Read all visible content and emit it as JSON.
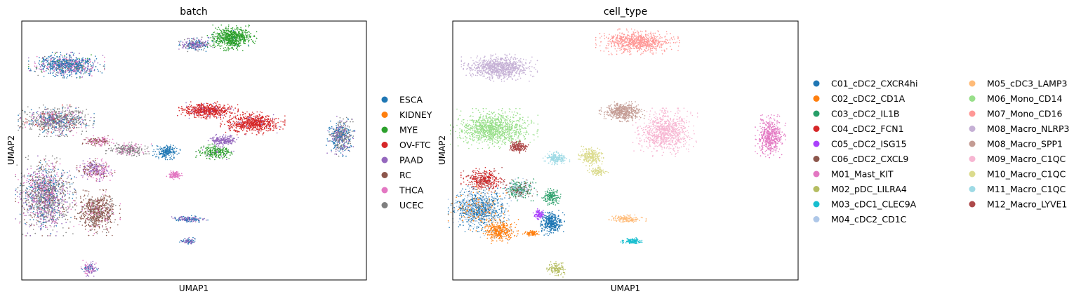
{
  "chart_data": [
    {
      "type": "scatter",
      "title": "batch",
      "xlabel": "UMAP1",
      "ylabel": "UMAP2",
      "xlim": [
        -10,
        10
      ],
      "ylim": [
        -10,
        10
      ],
      "grid": false,
      "legend_position": "right",
      "series": [
        {
          "name": "ESCA",
          "color": "#1f77b4"
        },
        {
          "name": "KIDNEY",
          "color": "#ff7f0e"
        },
        {
          "name": "MYE",
          "color": "#2ca02c"
        },
        {
          "name": "OV-FTC",
          "color": "#d62728"
        },
        {
          "name": "PAAD",
          "color": "#9467bd"
        },
        {
          "name": "RC",
          "color": "#8c564b"
        },
        {
          "name": "THCA",
          "color": "#e377c2"
        },
        {
          "name": "UCEC",
          "color": "#7f7f7f"
        }
      ],
      "clusters": [
        {
          "x": -7.4,
          "y": 6.6,
          "rx": 2.0,
          "ry": 0.9,
          "n": 900,
          "mix": [
            [
              "ESCA",
              0.55
            ],
            [
              "PAAD",
              0.15
            ],
            [
              "THCA",
              0.15
            ],
            [
              "UCEC",
              0.1
            ],
            [
              "MYE",
              0.05
            ]
          ]
        },
        {
          "x": 0.1,
          "y": 8.2,
          "rx": 1.0,
          "ry": 0.5,
          "n": 250,
          "mix": [
            [
              "PAAD",
              0.5
            ],
            [
              "ESCA",
              0.3
            ],
            [
              "UCEC",
              0.2
            ]
          ]
        },
        {
          "x": 2.2,
          "y": 8.7,
          "rx": 1.3,
          "ry": 0.9,
          "n": 700,
          "mix": [
            [
              "MYE",
              0.95
            ],
            [
              "ESCA",
              0.05
            ]
          ]
        },
        {
          "x": -8.0,
          "y": 2.3,
          "rx": 2.0,
          "ry": 1.1,
          "n": 900,
          "mix": [
            [
              "UCEC",
              0.6
            ],
            [
              "ESCA",
              0.15
            ],
            [
              "PAAD",
              0.1
            ],
            [
              "THCA",
              0.1
            ],
            [
              "OV-FTC",
              0.05
            ]
          ]
        },
        {
          "x": -8.6,
          "y": -3.5,
          "rx": 1.6,
          "ry": 2.8,
          "n": 1500,
          "mix": [
            [
              "UCEC",
              0.4
            ],
            [
              "PAAD",
              0.2
            ],
            [
              "THCA",
              0.15
            ],
            [
              "ESCA",
              0.15
            ],
            [
              "RC",
              0.1
            ]
          ]
        },
        {
          "x": -5.6,
          "y": -4.8,
          "rx": 1.2,
          "ry": 1.6,
          "n": 700,
          "mix": [
            [
              "RC",
              0.75
            ],
            [
              "UCEC",
              0.15
            ],
            [
              "THCA",
              0.1
            ]
          ]
        },
        {
          "x": -5.7,
          "y": -1.5,
          "rx": 1.0,
          "ry": 0.8,
          "n": 300,
          "mix": [
            [
              "PAAD",
              0.4
            ],
            [
              "THCA",
              0.3
            ],
            [
              "RC",
              0.3
            ]
          ]
        },
        {
          "x": -5.6,
          "y": 0.7,
          "rx": 0.9,
          "ry": 0.4,
          "n": 150,
          "mix": [
            [
              "RC",
              0.5
            ],
            [
              "THCA",
              0.5
            ]
          ]
        },
        {
          "x": -3.8,
          "y": 0.1,
          "rx": 1.2,
          "ry": 0.5,
          "n": 250,
          "mix": [
            [
              "UCEC",
              0.7
            ],
            [
              "THCA",
              0.3
            ]
          ]
        },
        {
          "x": 0.8,
          "y": 3.1,
          "rx": 1.6,
          "ry": 0.6,
          "n": 600,
          "mix": [
            [
              "OV-FTC",
              0.9
            ],
            [
              "PAAD",
              0.1
            ]
          ]
        },
        {
          "x": 3.4,
          "y": 2.1,
          "rx": 1.7,
          "ry": 0.8,
          "n": 700,
          "mix": [
            [
              "OV-FTC",
              0.95
            ],
            [
              "PAAD",
              0.05
            ]
          ]
        },
        {
          "x": 1.7,
          "y": 0.8,
          "rx": 0.8,
          "ry": 0.4,
          "n": 200,
          "mix": [
            [
              "PAAD",
              1.0
            ]
          ]
        },
        {
          "x": 1.2,
          "y": -0.1,
          "rx": 1.0,
          "ry": 0.55,
          "n": 250,
          "mix": [
            [
              "MYE",
              0.9
            ],
            [
              "PAAD",
              0.1
            ]
          ]
        },
        {
          "x": -1.6,
          "y": -0.1,
          "rx": 0.75,
          "ry": 0.55,
          "n": 200,
          "mix": [
            [
              "ESCA",
              1.0
            ]
          ]
        },
        {
          "x": -1.1,
          "y": -1.9,
          "rx": 0.45,
          "ry": 0.3,
          "n": 120,
          "mix": [
            [
              "THCA",
              1.0
            ]
          ]
        },
        {
          "x": -0.3,
          "y": -5.3,
          "rx": 1.0,
          "ry": 0.25,
          "n": 150,
          "mix": [
            [
              "ESCA",
              0.5
            ],
            [
              "PAAD",
              0.5
            ]
          ]
        },
        {
          "x": -0.3,
          "y": -7.0,
          "rx": 0.5,
          "ry": 0.25,
          "n": 80,
          "mix": [
            [
              "PAAD",
              0.6
            ],
            [
              "ESCA",
              0.4
            ]
          ]
        },
        {
          "x": -6.1,
          "y": -9.1,
          "rx": 0.5,
          "ry": 0.55,
          "n": 120,
          "mix": [
            [
              "PAAD",
              0.5
            ],
            [
              "THCA",
              0.3
            ],
            [
              "ESCA",
              0.2
            ]
          ]
        },
        {
          "x": 8.5,
          "y": 1.1,
          "rx": 0.75,
          "ry": 1.4,
          "n": 500,
          "mix": [
            [
              "UCEC",
              0.4
            ],
            [
              "ESCA",
              0.35
            ],
            [
              "PAAD",
              0.25
            ]
          ]
        }
      ]
    },
    {
      "type": "scatter",
      "title": "cell_type",
      "xlabel": "UMAP1",
      "ylabel": "UMAP2",
      "xlim": [
        -10,
        10
      ],
      "ylim": [
        -10,
        10
      ],
      "grid": false,
      "legend_position": "right",
      "series": [
        {
          "name": "C01_cDC2_CXCR4hi",
          "color": "#1f77b4"
        },
        {
          "name": "C02_cDC2_CD1A",
          "color": "#ff7f0e"
        },
        {
          "name": "C03_cDC2_IL1B",
          "color": "#279e68"
        },
        {
          "name": "C04_cDC2_FCN1",
          "color": "#d62728"
        },
        {
          "name": "C05_cDC2_ISG15",
          "color": "#aa40fc"
        },
        {
          "name": "C06_cDC2_CXCL9",
          "color": "#8c564b"
        },
        {
          "name": "M01_Mast_KIT",
          "color": "#e377c2"
        },
        {
          "name": "M02_pDC_LILRA4",
          "color": "#b5bd61"
        },
        {
          "name": "M03_cDC1_CLEC9A",
          "color": "#17becf"
        },
        {
          "name": "M04_cDC2_CD1C",
          "color": "#aec7e8"
        },
        {
          "name": "M05_cDC3_LAMP3",
          "color": "#ffbb78"
        },
        {
          "name": "M06_Mono_CD14",
          "color": "#98df8a"
        },
        {
          "name": "M07_Mono_CD16",
          "color": "#ff9896"
        },
        {
          "name": "M08_Macro_NLRP3",
          "color": "#c5b0d5"
        },
        {
          "name": "M08_Macro_SPP1",
          "color": "#c49c94"
        },
        {
          "name": "M09_Macro_C1QC",
          "color": "#f7b6d2"
        },
        {
          "name": "M10_Macro_C1QC",
          "color": "#dbdb8d"
        },
        {
          "name": "M11_Macro_C1QC",
          "color": "#9edae5"
        },
        {
          "name": "M12_Macro_LYVE1",
          "color": "#ad494a"
        }
      ],
      "clusters": [
        {
          "x": 0.7,
          "y": 8.4,
          "rx": 2.2,
          "ry": 0.9,
          "n": 800,
          "mix": [
            [
              "M07_Mono_CD16",
              1.0
            ]
          ]
        },
        {
          "x": -7.3,
          "y": 6.4,
          "rx": 2.0,
          "ry": 0.95,
          "n": 900,
          "mix": [
            [
              "M08_Macro_NLRP3",
              1.0
            ]
          ]
        },
        {
          "x": -7.6,
          "y": 1.7,
          "rx": 2.3,
          "ry": 1.4,
          "n": 1100,
          "mix": [
            [
              "M06_Mono_CD14",
              1.0
            ]
          ]
        },
        {
          "x": -0.2,
          "y": 3.0,
          "rx": 1.2,
          "ry": 0.7,
          "n": 500,
          "mix": [
            [
              "M08_Macro_SPP1",
              1.0
            ]
          ]
        },
        {
          "x": 2.3,
          "y": 1.4,
          "rx": 1.7,
          "ry": 1.7,
          "n": 900,
          "mix": [
            [
              "M09_Macro_C1QC",
              1.0
            ]
          ]
        },
        {
          "x": -2.0,
          "y": -0.4,
          "rx": 0.75,
          "ry": 0.7,
          "n": 250,
          "mix": [
            [
              "M10_Macro_C1QC",
              1.0
            ]
          ]
        },
        {
          "x": -1.6,
          "y": -1.6,
          "rx": 0.55,
          "ry": 0.35,
          "n": 100,
          "mix": [
            [
              "M10_Macro_C1QC",
              1.0
            ]
          ]
        },
        {
          "x": -4.0,
          "y": -0.6,
          "rx": 0.7,
          "ry": 0.5,
          "n": 200,
          "mix": [
            [
              "M11_Macro_C1QC",
              1.0
            ]
          ]
        },
        {
          "x": -6.2,
          "y": 0.3,
          "rx": 0.6,
          "ry": 0.45,
          "n": 200,
          "mix": [
            [
              "M12_Macro_LYVE1",
              1.0
            ]
          ]
        },
        {
          "x": -8.2,
          "y": -2.3,
          "rx": 1.2,
          "ry": 0.9,
          "n": 400,
          "mix": [
            [
              "C04_cDC2_FCN1",
              0.6
            ],
            [
              "M12_Macro_LYVE1",
              0.4
            ]
          ]
        },
        {
          "x": -8.5,
          "y": -4.5,
          "rx": 1.6,
          "ry": 1.6,
          "n": 1100,
          "mix": [
            [
              "C01_cDC2_CXCR4hi",
              0.55
            ],
            [
              "M04_cDC2_CD1C",
              0.3
            ],
            [
              "C02_cDC2_CD1A",
              0.15
            ]
          ]
        },
        {
          "x": -7.3,
          "y": -6.2,
          "rx": 1.0,
          "ry": 0.9,
          "n": 400,
          "mix": [
            [
              "C02_cDC2_CD1A",
              0.9
            ],
            [
              "M04_cDC2_CD1C",
              0.1
            ]
          ]
        },
        {
          "x": -6.1,
          "y": -3.0,
          "rx": 0.9,
          "ry": 0.8,
          "n": 350,
          "mix": [
            [
              "C03_cDC2_IL1B",
              0.45
            ],
            [
              "M04_cDC2_CD1C",
              0.3
            ],
            [
              "C06_cDC2_CXCL9",
              0.25
            ]
          ]
        },
        {
          "x": -4.3,
          "y": -3.6,
          "rx": 0.5,
          "ry": 0.6,
          "n": 150,
          "mix": [
            [
              "C03_cDC2_IL1B",
              1.0
            ]
          ]
        },
        {
          "x": -5.0,
          "y": -4.9,
          "rx": 0.35,
          "ry": 0.4,
          "n": 100,
          "mix": [
            [
              "C05_cDC2_ISG15",
              1.0
            ]
          ]
        },
        {
          "x": -4.3,
          "y": -5.6,
          "rx": 0.7,
          "ry": 0.9,
          "n": 350,
          "mix": [
            [
              "C01_cDC2_CXCR4hi",
              1.0
            ]
          ]
        },
        {
          "x": -5.4,
          "y": -6.4,
          "rx": 0.5,
          "ry": 0.25,
          "n": 80,
          "mix": [
            [
              "C02_cDC2_CD1A",
              1.0
            ]
          ]
        },
        {
          "x": 0.1,
          "y": -5.3,
          "rx": 1.0,
          "ry": 0.3,
          "n": 150,
          "mix": [
            [
              "M05_cDC3_LAMP3",
              1.0
            ]
          ]
        },
        {
          "x": 0.4,
          "y": -7.0,
          "rx": 0.6,
          "ry": 0.25,
          "n": 120,
          "mix": [
            [
              "M03_cDC1_CLEC9A",
              1.0
            ]
          ]
        },
        {
          "x": -4.0,
          "y": -9.2,
          "rx": 0.5,
          "ry": 0.55,
          "n": 120,
          "mix": [
            [
              "M02_pDC_LILRA4",
              1.0
            ]
          ]
        },
        {
          "x": 8.4,
          "y": 1.1,
          "rx": 0.8,
          "ry": 1.5,
          "n": 500,
          "mix": [
            [
              "M01_Mast_KIT",
              1.0
            ]
          ]
        }
      ]
    }
  ]
}
